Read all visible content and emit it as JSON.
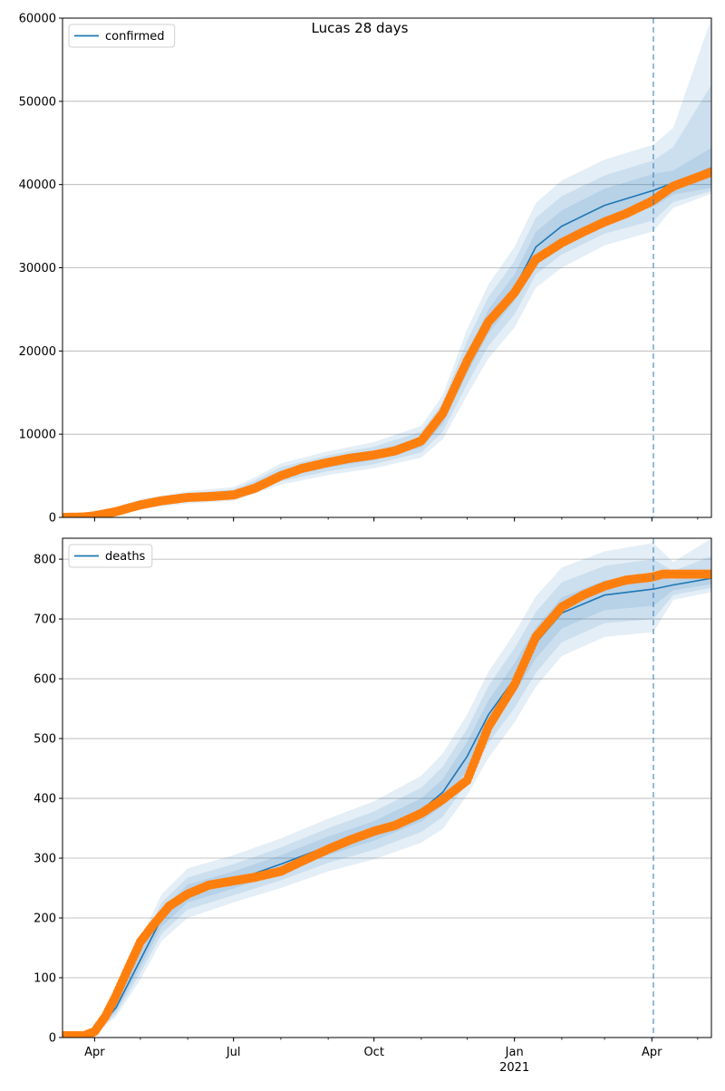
{
  "title": "Lucas 28 days",
  "colors": {
    "model": "#1f77b4",
    "observed": "#ff7f0e",
    "band": "#1f77b4",
    "grid": "#b0b0b0",
    "vline": "#1f77b4"
  },
  "chart_data": [
    {
      "type": "line",
      "title": "",
      "legend": {
        "position": "top-left",
        "entries": [
          "confirmed"
        ]
      },
      "xlabel": "",
      "ylabel": "",
      "ylim": [
        0,
        60000
      ],
      "yticks": [
        0,
        10000,
        20000,
        30000,
        40000,
        50000,
        60000
      ],
      "ytick_labels": [
        "0",
        "10000",
        "20000",
        "30000",
        "40000",
        "50000",
        "60000"
      ],
      "xlim": [
        "2020-03-11",
        "2021-05-10"
      ],
      "xticks_major": [
        "2020-04-01",
        "2020-07-01",
        "2020-10-01",
        "2021-01-01",
        "2021-04-01"
      ],
      "xtick_labels": [
        "",
        "",
        "",
        "",
        ""
      ],
      "forecast_start": "2021-04-02",
      "grid": "horizontal",
      "model": {
        "name": "confirmed",
        "x": [
          "2020-03-11",
          "2020-04-01",
          "2020-05-01",
          "2020-06-01",
          "2020-07-01",
          "2020-07-15",
          "2020-08-01",
          "2020-09-01",
          "2020-10-01",
          "2020-11-01",
          "2020-11-15",
          "2020-12-01",
          "2020-12-15",
          "2021-01-01",
          "2021-01-15",
          "2021-02-01",
          "2021-03-01",
          "2021-04-02",
          "2021-04-15",
          "2021-05-10"
        ],
        "y": [
          0,
          300,
          1600,
          2400,
          2800,
          3800,
          5200,
          6500,
          7400,
          9000,
          12000,
          18500,
          23500,
          27500,
          32500,
          35000,
          37500,
          39300,
          40200,
          42000
        ],
        "band1": [
          [
            0,
            0
          ],
          [
            250,
            350
          ],
          [
            1400,
            1800
          ],
          [
            2150,
            2650
          ],
          [
            2500,
            3100
          ],
          [
            3450,
            4150
          ],
          [
            4750,
            5650
          ],
          [
            6000,
            7000
          ],
          [
            6900,
            7950
          ],
          [
            8400,
            9600
          ],
          [
            11200,
            12900
          ],
          [
            17300,
            19800
          ],
          [
            22100,
            25000
          ],
          [
            26000,
            29200
          ],
          [
            30800,
            34300
          ],
          [
            33200,
            36900
          ],
          [
            35600,
            39500
          ],
          [
            37300,
            41300
          ],
          [
            38800,
            41700
          ],
          [
            39600,
            44400
          ]
        ],
        "band2": [
          [
            0,
            0
          ],
          [
            200,
            400
          ],
          [
            1200,
            2000
          ],
          [
            1900,
            2900
          ],
          [
            2250,
            3350
          ],
          [
            3150,
            4450
          ],
          [
            4350,
            6050
          ],
          [
            5550,
            7450
          ],
          [
            6400,
            8500
          ],
          [
            7800,
            10300
          ],
          [
            10300,
            13800
          ],
          [
            16000,
            21200
          ],
          [
            20600,
            26500
          ],
          [
            24400,
            30800
          ],
          [
            29200,
            36000
          ],
          [
            31600,
            38600
          ],
          [
            34100,
            41100
          ],
          [
            35700,
            42900
          ],
          [
            37900,
            44500
          ],
          [
            39200,
            52000
          ]
        ],
        "band3": [
          [
            0,
            0
          ],
          [
            150,
            450
          ],
          [
            1050,
            2200
          ],
          [
            1650,
            3150
          ],
          [
            2000,
            3650
          ],
          [
            2850,
            4800
          ],
          [
            3950,
            6500
          ],
          [
            5100,
            7950
          ],
          [
            5900,
            9050
          ],
          [
            7200,
            11000
          ],
          [
            9400,
            14700
          ],
          [
            14700,
            22600
          ],
          [
            19100,
            28000
          ],
          [
            22800,
            32500
          ],
          [
            27600,
            37800
          ],
          [
            30000,
            40500
          ],
          [
            32700,
            43000
          ],
          [
            34400,
            44800
          ],
          [
            37200,
            46800
          ],
          [
            38900,
            60000
          ]
        ]
      },
      "observed": {
        "x": [
          "2020-03-11",
          "2020-03-25",
          "2020-04-01",
          "2020-04-15",
          "2020-05-01",
          "2020-05-15",
          "2020-06-01",
          "2020-06-15",
          "2020-07-01",
          "2020-07-15",
          "2020-08-01",
          "2020-08-15",
          "2020-09-01",
          "2020-09-15",
          "2020-10-01",
          "2020-10-15",
          "2020-11-01",
          "2020-11-15",
          "2020-12-01",
          "2020-12-15",
          "2021-01-01",
          "2021-01-15",
          "2021-02-01",
          "2021-02-15",
          "2021-03-01",
          "2021-03-15",
          "2021-04-01",
          "2021-04-15",
          "2021-05-10"
        ],
        "y": [
          0,
          50,
          200,
          700,
          1500,
          2000,
          2400,
          2500,
          2700,
          3500,
          5000,
          5900,
          6600,
          7100,
          7500,
          8000,
          9200,
          12500,
          18800,
          23500,
          27000,
          31000,
          33000,
          34300,
          35500,
          36500,
          38000,
          39800,
          41500
        ]
      }
    },
    {
      "type": "line",
      "title": "",
      "legend": {
        "position": "top-left",
        "entries": [
          "deaths"
        ]
      },
      "xlabel": "",
      "ylabel": "",
      "ylim": [
        0,
        835
      ],
      "yticks": [
        0,
        100,
        200,
        300,
        400,
        500,
        600,
        700,
        800
      ],
      "ytick_labels": [
        "0",
        "100",
        "200",
        "300",
        "400",
        "500",
        "600",
        "700",
        "800"
      ],
      "xlim": [
        "2020-03-11",
        "2021-05-10"
      ],
      "xticks_major": [
        "2020-04-01",
        "2020-07-01",
        "2020-10-01",
        "2021-01-01",
        "2021-04-01"
      ],
      "xtick_labels": [
        "Apr",
        "Jul",
        "Oct",
        "Jan",
        "Apr"
      ],
      "xtick_sublabel": {
        "under": "Jan",
        "text": "2021"
      },
      "forecast_start": "2021-04-02",
      "grid": "horizontal",
      "model": {
        "name": "deaths",
        "x": [
          "2020-03-11",
          "2020-03-25",
          "2020-04-01",
          "2020-04-15",
          "2020-05-01",
          "2020-05-15",
          "2020-06-01",
          "2020-07-01",
          "2020-08-01",
          "2020-09-01",
          "2020-10-01",
          "2020-11-01",
          "2020-11-15",
          "2020-12-01",
          "2020-12-15",
          "2021-01-01",
          "2021-01-15",
          "2021-02-01",
          "2021-03-01",
          "2021-04-02",
          "2021-04-15",
          "2021-05-10"
        ],
        "y": [
          0,
          2,
          8,
          50,
          130,
          200,
          240,
          262,
          290,
          320,
          345,
          380,
          410,
          470,
          540,
          600,
          660,
          710,
          740,
          750,
          757,
          768
        ],
        "band1": [
          [
            0,
            0
          ],
          [
            1,
            3
          ],
          [
            7,
            10
          ],
          [
            44,
            56
          ],
          [
            118,
            142
          ],
          [
            186,
            214
          ],
          [
            226,
            256
          ],
          [
            249,
            278
          ],
          [
            276,
            305
          ],
          [
            305,
            336
          ],
          [
            329,
            362
          ],
          [
            361,
            400
          ],
          [
            388,
            432
          ],
          [
            447,
            494
          ],
          [
            516,
            564
          ],
          [
            575,
            626
          ],
          [
            634,
            686
          ],
          [
            684,
            736
          ],
          [
            715,
            765
          ],
          [
            722,
            774
          ],
          [
            748,
            765
          ],
          [
            758,
            782
          ]
        ],
        "band2": [
          [
            0,
            0
          ],
          [
            1,
            4
          ],
          [
            6,
            11
          ],
          [
            40,
            61
          ],
          [
            108,
            153
          ],
          [
            174,
            226
          ],
          [
            214,
            268
          ],
          [
            238,
            290
          ],
          [
            263,
            318
          ],
          [
            292,
            350
          ],
          [
            314,
            378
          ],
          [
            344,
            418
          ],
          [
            369,
            453
          ],
          [
            426,
            516
          ],
          [
            493,
            588
          ],
          [
            551,
            651
          ],
          [
            610,
            712
          ],
          [
            661,
            761
          ],
          [
            693,
            789
          ],
          [
            700,
            800
          ],
          [
            740,
            780
          ],
          [
            752,
            805
          ]
        ],
        "band3": [
          [
            0,
            0
          ],
          [
            0,
            5
          ],
          [
            5,
            13
          ],
          [
            35,
            67
          ],
          [
            97,
            165
          ],
          [
            162,
            240
          ],
          [
            200,
            283
          ],
          [
            226,
            305
          ],
          [
            250,
            333
          ],
          [
            278,
            366
          ],
          [
            298,
            395
          ],
          [
            326,
            438
          ],
          [
            349,
            475
          ],
          [
            405,
            540
          ],
          [
            468,
            612
          ],
          [
            527,
            676
          ],
          [
            587,
            738
          ],
          [
            638,
            786
          ],
          [
            670,
            813
          ],
          [
            678,
            827
          ],
          [
            732,
            795
          ],
          [
            745,
            835
          ]
        ]
      },
      "observed": {
        "x": [
          "2020-03-11",
          "2020-03-25",
          "2020-04-01",
          "2020-04-08",
          "2020-04-15",
          "2020-04-22",
          "2020-05-01",
          "2020-05-10",
          "2020-05-20",
          "2020-06-01",
          "2020-06-15",
          "2020-07-01",
          "2020-07-15",
          "2020-08-01",
          "2020-08-15",
          "2020-09-01",
          "2020-09-15",
          "2020-10-01",
          "2020-10-15",
          "2020-11-01",
          "2020-11-15",
          "2020-12-01",
          "2020-12-15",
          "2021-01-01",
          "2021-01-15",
          "2021-02-01",
          "2021-02-15",
          "2021-03-01",
          "2021-03-15",
          "2021-04-01",
          "2021-04-08",
          "2021-04-15",
          "2021-05-10"
        ],
        "y": [
          3,
          3,
          10,
          35,
          70,
          110,
          160,
          190,
          220,
          240,
          255,
          262,
          268,
          278,
          295,
          315,
          330,
          345,
          355,
          375,
          398,
          430,
          520,
          590,
          670,
          720,
          740,
          755,
          765,
          770,
          775,
          775,
          775
        ]
      }
    }
  ]
}
